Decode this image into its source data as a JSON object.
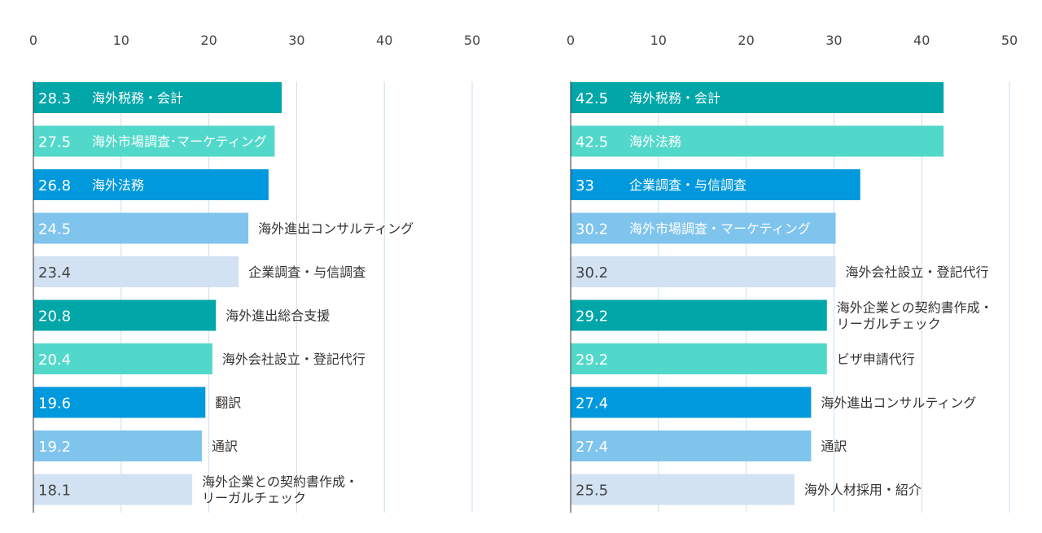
{
  "chart_data": [
    {
      "type": "bar",
      "orientation": "horizontal",
      "xlim": [
        0,
        50
      ],
      "ticks": [
        "0",
        "10",
        "20",
        "30",
        "40",
        "50"
      ],
      "grid": true,
      "categories": [
        "海外税務・会計",
        "海外市場調査･マーケティング",
        "海外法務",
        "海外進出コンサルティング",
        "企業調査・与信調査",
        "海外進出総合支援",
        "海外会社設立・登記代行",
        "翻訳",
        "通訳",
        "海外企業との契約書作成・\nリーガルチェック"
      ],
      "values": [
        28.3,
        27.5,
        26.8,
        24.5,
        23.4,
        20.8,
        20.4,
        19.6,
        19.2,
        18.1
      ],
      "value_labels": [
        "28.3",
        "27.5",
        "26.8",
        "24.5",
        "23.4",
        "20.8",
        "20.4",
        "19.6",
        "19.2",
        "18.1"
      ],
      "label_inside": [
        true,
        true,
        true,
        false,
        false,
        false,
        false,
        false,
        false,
        false
      ]
    },
    {
      "type": "bar",
      "orientation": "horizontal",
      "xlim": [
        0,
        50
      ],
      "ticks": [
        "0",
        "10",
        "20",
        "30",
        "40",
        "50"
      ],
      "grid": true,
      "categories": [
        "海外税務・会計",
        "海外法務",
        "企業調査・与信調査",
        "海外市場調査・マーケティング",
        "海外会社設立・登記代行",
        "海外企業との契約書作成・\nリーガルチェック",
        "ビザ申請代行",
        "海外進出コンサルティング",
        "通訳",
        "海外人材採用・紹介"
      ],
      "values": [
        42.5,
        42.5,
        33,
        30.2,
        30.2,
        29.2,
        29.2,
        27.4,
        27.4,
        25.5
      ],
      "value_labels": [
        "42.5",
        "42.5",
        "33",
        "30.2",
        "30.2",
        "29.2",
        "29.2",
        "27.4",
        "27.4",
        "25.5"
      ],
      "label_inside": [
        true,
        true,
        true,
        true,
        false,
        false,
        false,
        false,
        false,
        false
      ]
    }
  ],
  "colors": {
    "palette": [
      "#00A6A8",
      "#52D8CB",
      "#0099DD",
      "#7FC4EC",
      "#D2E2F2"
    ],
    "grid": "#C8DFF0",
    "axis": "#333333",
    "tick_text": "#444444",
    "label_text": "#333333",
    "value_text_dark_bg": "#FFFFFF",
    "value_text_light_bg": "#444444"
  }
}
